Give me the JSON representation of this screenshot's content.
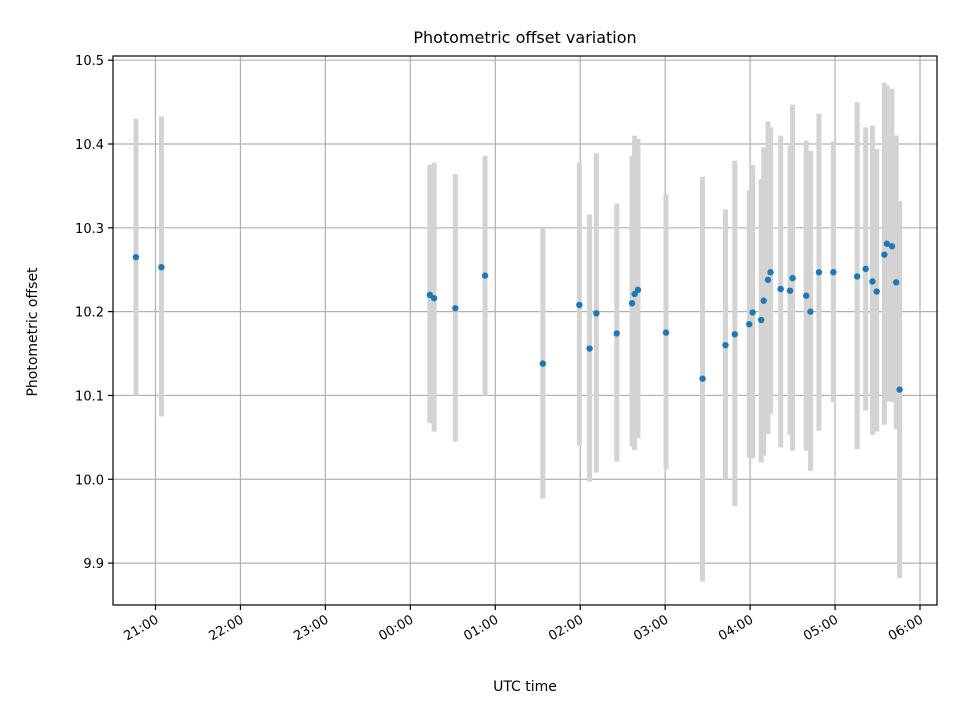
{
  "chart_data": {
    "type": "scatter",
    "title": "Photometric offset variation",
    "xlabel": "UTC time",
    "ylabel": "Photometric offset",
    "x_unit": "hours",
    "xlim": [
      20.5,
      30.2
    ],
    "ylim": [
      9.85,
      10.505
    ],
    "grid": true,
    "x_ticks": [
      {
        "value": 21,
        "label": "21:00"
      },
      {
        "value": 22,
        "label": "22:00"
      },
      {
        "value": 23,
        "label": "23:00"
      },
      {
        "value": 24,
        "label": "00:00"
      },
      {
        "value": 25,
        "label": "01:00"
      },
      {
        "value": 26,
        "label": "02:00"
      },
      {
        "value": 27,
        "label": "03:00"
      },
      {
        "value": 28,
        "label": "04:00"
      },
      {
        "value": 29,
        "label": "05:00"
      },
      {
        "value": 30,
        "label": "06:00"
      }
    ],
    "y_ticks": [
      {
        "value": 9.9,
        "label": "9.9"
      },
      {
        "value": 10.0,
        "label": "10.0"
      },
      {
        "value": 10.1,
        "label": "10.1"
      },
      {
        "value": 10.2,
        "label": "10.2"
      },
      {
        "value": 10.3,
        "label": "10.3"
      },
      {
        "value": 10.4,
        "label": "10.4"
      },
      {
        "value": 10.5,
        "label": "10.5"
      }
    ],
    "colors": {
      "point": "#1f77b4",
      "error_bar": "#d3d3d3",
      "grid": "#b0b0b0"
    },
    "points": [
      {
        "x": 20.77,
        "y": 10.265,
        "lo": 10.1,
        "hi": 10.43
      },
      {
        "x": 21.07,
        "y": 10.253,
        "lo": 10.075,
        "hi": 10.433
      },
      {
        "x": 24.23,
        "y": 10.22,
        "lo": 10.067,
        "hi": 10.375
      },
      {
        "x": 24.28,
        "y": 10.216,
        "lo": 10.057,
        "hi": 10.378
      },
      {
        "x": 24.53,
        "y": 10.204,
        "lo": 10.045,
        "hi": 10.364
      },
      {
        "x": 24.88,
        "y": 10.243,
        "lo": 10.1,
        "hi": 10.386
      },
      {
        "x": 25.56,
        "y": 10.138,
        "lo": 9.977,
        "hi": 10.3
      },
      {
        "x": 25.99,
        "y": 10.208,
        "lo": 10.04,
        "hi": 10.378
      },
      {
        "x": 26.11,
        "y": 10.156,
        "lo": 9.997,
        "hi": 10.316
      },
      {
        "x": 26.19,
        "y": 10.198,
        "lo": 10.008,
        "hi": 10.389
      },
      {
        "x": 26.43,
        "y": 10.174,
        "lo": 10.021,
        "hi": 10.329
      },
      {
        "x": 26.61,
        "y": 10.21,
        "lo": 10.039,
        "hi": 10.386
      },
      {
        "x": 26.64,
        "y": 10.221,
        "lo": 10.035,
        "hi": 10.41
      },
      {
        "x": 26.68,
        "y": 10.226,
        "lo": 10.049,
        "hi": 10.406
      },
      {
        "x": 27.01,
        "y": 10.175,
        "lo": 10.012,
        "hi": 10.34
      },
      {
        "x": 27.44,
        "y": 10.12,
        "lo": 9.878,
        "hi": 10.361
      },
      {
        "x": 27.71,
        "y": 10.16,
        "lo": 10.0,
        "hi": 10.322
      },
      {
        "x": 27.82,
        "y": 10.173,
        "lo": 9.968,
        "hi": 10.38
      },
      {
        "x": 27.99,
        "y": 10.185,
        "lo": 10.026,
        "hi": 10.345
      },
      {
        "x": 28.03,
        "y": 10.199,
        "lo": 10.025,
        "hi": 10.375
      },
      {
        "x": 28.13,
        "y": 10.19,
        "lo": 10.02,
        "hi": 10.358
      },
      {
        "x": 28.16,
        "y": 10.213,
        "lo": 10.028,
        "hi": 10.396
      },
      {
        "x": 28.21,
        "y": 10.238,
        "lo": 10.054,
        "hi": 10.427
      },
      {
        "x": 28.24,
        "y": 10.247,
        "lo": 10.078,
        "hi": 10.42
      },
      {
        "x": 28.36,
        "y": 10.227,
        "lo": 10.038,
        "hi": 10.41
      },
      {
        "x": 28.47,
        "y": 10.225,
        "lo": 10.053,
        "hi": 10.398
      },
      {
        "x": 28.5,
        "y": 10.24,
        "lo": 10.034,
        "hi": 10.447
      },
      {
        "x": 28.66,
        "y": 10.219,
        "lo": 10.034,
        "hi": 10.404
      },
      {
        "x": 28.71,
        "y": 10.2,
        "lo": 10.01,
        "hi": 10.392
      },
      {
        "x": 28.81,
        "y": 10.247,
        "lo": 10.058,
        "hi": 10.436
      },
      {
        "x": 28.98,
        "y": 10.247,
        "lo": 10.092,
        "hi": 10.403
      },
      {
        "x": 29.26,
        "y": 10.242,
        "lo": 10.036,
        "hi": 10.45
      },
      {
        "x": 29.36,
        "y": 10.251,
        "lo": 10.082,
        "hi": 10.42
      },
      {
        "x": 29.44,
        "y": 10.236,
        "lo": 10.053,
        "hi": 10.422
      },
      {
        "x": 29.49,
        "y": 10.224,
        "lo": 10.057,
        "hi": 10.394
      },
      {
        "x": 29.58,
        "y": 10.268,
        "lo": 10.065,
        "hi": 10.473
      },
      {
        "x": 29.61,
        "y": 10.281,
        "lo": 10.093,
        "hi": 10.47
      },
      {
        "x": 29.67,
        "y": 10.278,
        "lo": 10.092,
        "hi": 10.466
      },
      {
        "x": 29.72,
        "y": 10.235,
        "lo": 10.06,
        "hi": 10.41
      },
      {
        "x": 29.76,
        "y": 10.107,
        "lo": 9.882,
        "hi": 10.332
      }
    ]
  }
}
